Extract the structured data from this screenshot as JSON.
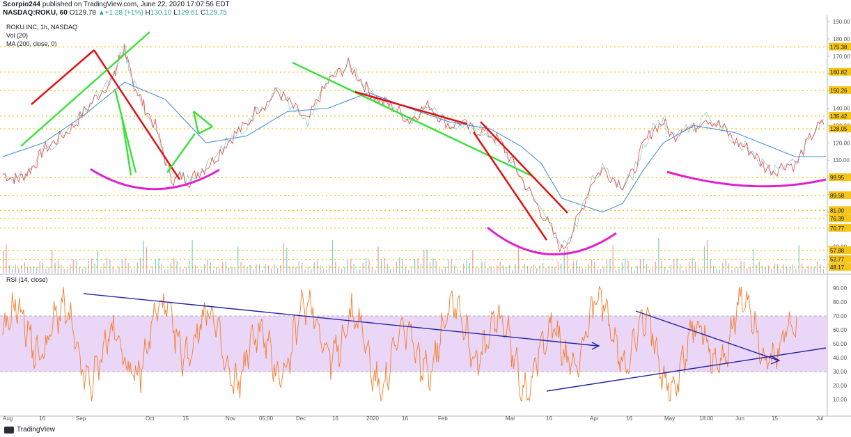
{
  "header": {
    "author": "Scorpio244",
    "published_text": " published on TradingView.com, June 22, 2020 17:07:56 EDT",
    "symbol": "NASDAQ:ROKU, 60",
    "open_label": "O",
    "open": "129.78",
    "high_label": "H",
    "high": "130.10",
    "low_label": "L",
    "low": "129.61",
    "close_label": "C",
    "close": "129.75",
    "change": "+1.28 (+1%)",
    "first_value": "130.10"
  },
  "legends": {
    "instrument": "ROKU INC, 1h, NASDAQ",
    "volume": "Vol (20)",
    "ma": "MA (200, close, 0)",
    "rsi": "RSI (14, close)"
  },
  "footer": {
    "brand": "TradingView"
  },
  "colors": {
    "price": "#ef5350",
    "price_up": "#26a69a",
    "ma": "#4a90d9",
    "red_trend": "#e01010",
    "green_trend": "#3ee03e",
    "magenta": "#e020d0",
    "level": "#f5c518",
    "rsi": "#f57c2a",
    "rsi_band": "#ead7f7",
    "blue_trend": "#2222aa"
  },
  "chart_data": [
    {
      "type": "line",
      "title": "ROKU INC, 1h, NASDAQ",
      "y_ticks": [
        190,
        180,
        170,
        160,
        150,
        140,
        130,
        120,
        110,
        100,
        90,
        80,
        70,
        60,
        50
      ],
      "y_tick_labels": [
        "190.00",
        "180.00",
        "170.00",
        "160.00",
        "150.00",
        "140.00",
        "130.00",
        "120.00",
        "110.00",
        "100.00",
        "90.00",
        "80.00",
        "70.00",
        "60.00",
        "50.00"
      ],
      "ylim": [
        45,
        192
      ],
      "levels": [
        "175.38",
        "160.82",
        "150.26",
        "135.42",
        "128.05",
        "99.95",
        "89.58",
        "81.00",
        "76.39",
        "70.77",
        "57.88",
        "52.77",
        "48.17"
      ],
      "x_ticks": [
        "Aug",
        "16",
        "Sep",
        "Oct",
        "15",
        "Nov",
        "05:00",
        "Dec",
        "16",
        "2020",
        "16",
        "Feb",
        "Mar",
        "16",
        "Apr",
        "16",
        "May",
        "18:00",
        "Jun",
        "15",
        "Jul"
      ],
      "price_path": [
        [
          0,
          102
        ],
        [
          5,
          100
        ],
        [
          8,
          99
        ],
        [
          12,
          103
        ],
        [
          16,
          108
        ],
        [
          20,
          116
        ],
        [
          25,
          120
        ],
        [
          30,
          125
        ],
        [
          35,
          130
        ],
        [
          40,
          138
        ],
        [
          45,
          145
        ],
        [
          50,
          152
        ],
        [
          55,
          158
        ],
        [
          57,
          168
        ],
        [
          60,
          175
        ],
        [
          62,
          163
        ],
        [
          64,
          155
        ],
        [
          67,
          148
        ],
        [
          70,
          140
        ],
        [
          75,
          130
        ],
        [
          80,
          110
        ],
        [
          84,
          98
        ],
        [
          88,
          101
        ],
        [
          92,
          98
        ],
        [
          96,
          103
        ],
        [
          100,
          106
        ],
        [
          105,
          112
        ],
        [
          110,
          120
        ],
        [
          115,
          126
        ],
        [
          120,
          130
        ],
        [
          125,
          140
        ],
        [
          130,
          143
        ],
        [
          135,
          150
        ],
        [
          140,
          144
        ],
        [
          145,
          138
        ],
        [
          150,
          132
        ],
        [
          155,
          145
        ],
        [
          160,
          155
        ],
        [
          165,
          160
        ],
        [
          170,
          165
        ],
        [
          175,
          158
        ],
        [
          180,
          150
        ],
        [
          185,
          145
        ],
        [
          190,
          142
        ],
        [
          195,
          138
        ],
        [
          200,
          133
        ],
        [
          205,
          138
        ],
        [
          210,
          142
        ],
        [
          215,
          135
        ],
        [
          220,
          130
        ],
        [
          225,
          132
        ],
        [
          230,
          128
        ],
        [
          235,
          127
        ],
        [
          240,
          125
        ],
        [
          245,
          120
        ],
        [
          250,
          110
        ],
        [
          255,
          100
        ],
        [
          260,
          90
        ],
        [
          265,
          80
        ],
        [
          270,
          70
        ],
        [
          275,
          58
        ],
        [
          280,
          68
        ],
        [
          285,
          82
        ],
        [
          290,
          98
        ],
        [
          295,
          105
        ],
        [
          300,
          100
        ],
        [
          305,
          96
        ],
        [
          310,
          102
        ],
        [
          315,
          118
        ],
        [
          320,
          128
        ],
        [
          325,
          132
        ],
        [
          330,
          123
        ],
        [
          335,
          130
        ],
        [
          340,
          128
        ],
        [
          345,
          135
        ],
        [
          350,
          132
        ],
        [
          355,
          128
        ],
        [
          360,
          121
        ],
        [
          365,
          118
        ],
        [
          370,
          113
        ],
        [
          375,
          106
        ],
        [
          380,
          104
        ],
        [
          385,
          108
        ],
        [
          390,
          107
        ],
        [
          395,
          118
        ],
        [
          400,
          128
        ],
        [
          405,
          132
        ]
      ],
      "ma_path": [
        [
          0,
          112
        ],
        [
          20,
          120
        ],
        [
          40,
          136
        ],
        [
          60,
          155
        ],
        [
          80,
          145
        ],
        [
          100,
          120
        ],
        [
          120,
          124
        ],
        [
          140,
          138
        ],
        [
          160,
          140
        ],
        [
          180,
          149
        ],
        [
          200,
          140
        ],
        [
          220,
          132
        ],
        [
          240,
          128
        ],
        [
          255,
          118
        ],
        [
          265,
          108
        ],
        [
          275,
          88
        ],
        [
          285,
          84
        ],
        [
          295,
          80
        ],
        [
          305,
          85
        ],
        [
          315,
          104
        ],
        [
          325,
          120
        ],
        [
          340,
          130
        ],
        [
          360,
          126
        ],
        [
          375,
          119
        ],
        [
          390,
          112
        ],
        [
          405,
          112
        ]
      ],
      "volume_scale_note": ""
    },
    {
      "type": "line",
      "title": "RSI (14, close)",
      "y_ticks": [
        90,
        80,
        70,
        60,
        50,
        40,
        30,
        20,
        10
      ],
      "y_tick_labels": [
        "90.00",
        "80.00",
        "70.00",
        "60.00",
        "50.00",
        "40.00",
        "30.00",
        "20.00",
        "10.00"
      ],
      "ylim": [
        2,
        95
      ],
      "band": [
        30,
        70
      ]
    }
  ]
}
